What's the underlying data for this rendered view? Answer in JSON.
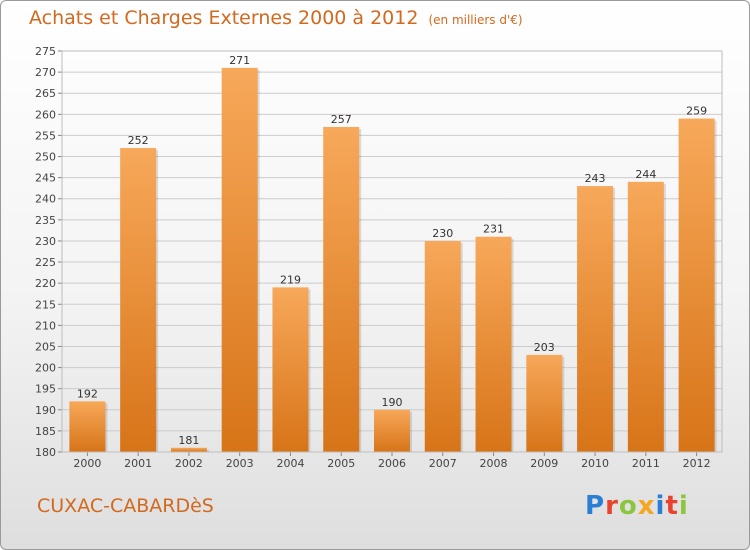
{
  "title": "Achats et Charges Externes 2000 à 2012",
  "subtitle": "(en milliers d'€)",
  "commune": "CUXAC-CABARDèS",
  "logo": {
    "letters": [
      "P",
      "r",
      "o",
      "x",
      "i",
      "t",
      "i"
    ],
    "colors": [
      "#2a7fd4",
      "#e8432f",
      "#8cc63f",
      "#f5a623",
      "#2a7fd4",
      "#e8432f",
      "#8cc63f"
    ]
  },
  "colors": {
    "bar_top": "#f7a85a",
    "bar_bottom": "#d77418",
    "text_accent": "#d2691e",
    "grid": "#cccccc"
  },
  "chart_data": {
    "type": "bar",
    "categories": [
      "2000",
      "2001",
      "2002",
      "2003",
      "2004",
      "2005",
      "2006",
      "2007",
      "2008",
      "2009",
      "2010",
      "2011",
      "2012"
    ],
    "values": [
      192,
      252,
      181,
      271,
      219,
      257,
      190,
      230,
      231,
      203,
      243,
      244,
      259
    ],
    "ylim": [
      180,
      275
    ],
    "yticks": [
      180,
      185,
      190,
      195,
      200,
      205,
      210,
      215,
      220,
      225,
      230,
      235,
      240,
      245,
      250,
      255,
      260,
      265,
      270,
      275
    ],
    "grid": true,
    "data_labels": true
  }
}
